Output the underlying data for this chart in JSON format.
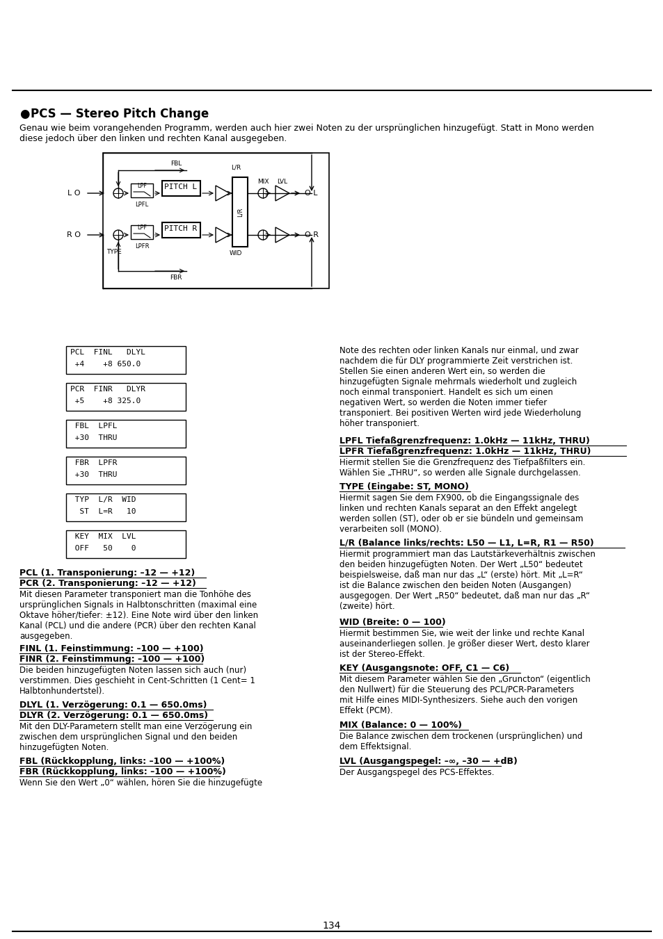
{
  "title": "PCS — Stereo Pitch Change",
  "intro_text": "Genau wie beim vorangehenden Programm, werden auch hier zwei Noten zu der ursprünglichen hinzugefügt. Statt in Mono werden\ndiese jedoch über den linken und rechten Kanal ausgegeben.",
  "display_boxes": [
    {
      "line1": "PCL  FINL   DLYL",
      "line2": " +4    +8 650.0"
    },
    {
      "line1": "PCR  FINR   DLYR",
      "line2": " +5    +8 325.0"
    },
    {
      "line1": " FBL  LPFL",
      "line2": " +30  THRU"
    },
    {
      "line1": " FBR  LPFR",
      "line2": " +30  THRU"
    },
    {
      "line1": " TYP  L/R  WID",
      "line2": "  ST  L=R   10"
    },
    {
      "line1": " KEY  MIX  LVL",
      "line2": " OFF   50    0"
    }
  ],
  "page_number": "134",
  "background_color": "#ffffff"
}
